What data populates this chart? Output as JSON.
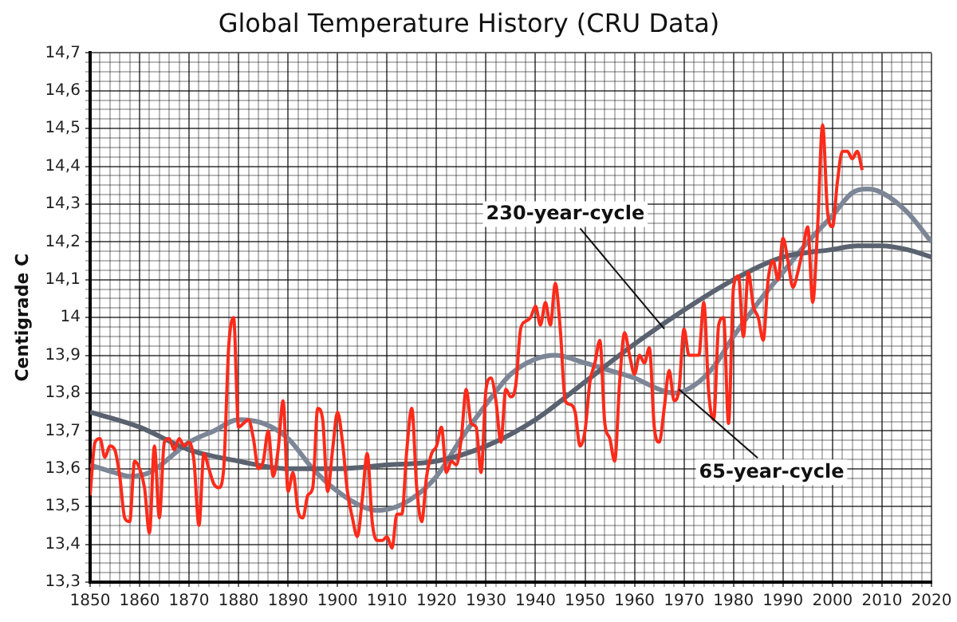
{
  "chart_data": {
    "type": "line",
    "title": "Global Temperature History (CRU Data)",
    "ylabel": "Centigrade C",
    "xlim": [
      1850,
      2020
    ],
    "ylim": [
      13.3,
      14.7
    ],
    "xticks": [
      1850,
      {
        "value": 1852,
        "label": null
      },
      {
        "value": 1854,
        "label": null
      },
      {
        "value": 1856,
        "label": null
      },
      {
        "value": 1858,
        "label": null
      },
      1860,
      {
        "value": 1862,
        "label": null
      },
      {
        "value": 1864,
        "label": null
      },
      {
        "value": 1866,
        "label": null
      },
      {
        "value": 1868,
        "label": null
      },
      1870,
      {
        "value": 1872,
        "label": null
      },
      {
        "value": 1874,
        "label": null
      },
      {
        "value": 1876,
        "label": null
      },
      {
        "value": 1878,
        "label": null
      },
      1880,
      {
        "value": 1882,
        "label": null
      },
      {
        "value": 1884,
        "label": null
      },
      {
        "value": 1886,
        "label": null
      },
      {
        "value": 1888,
        "label": null
      },
      1890,
      {
        "value": 1892,
        "label": null
      },
      {
        "value": 1894,
        "label": null
      },
      {
        "value": 1896,
        "label": null
      },
      {
        "value": 1898,
        "label": null
      },
      1900,
      {
        "value": 1902,
        "label": null
      },
      {
        "value": 1904,
        "label": null
      },
      {
        "value": 1906,
        "label": null
      },
      {
        "value": 1908,
        "label": null
      },
      1910,
      {
        "value": 1912,
        "label": null
      },
      {
        "value": 1914,
        "label": null
      },
      {
        "value": 1916,
        "label": null
      },
      {
        "value": 1918,
        "label": null
      },
      1920,
      {
        "value": 1922,
        "label": null
      },
      {
        "value": 1924,
        "label": null
      },
      {
        "value": 1926,
        "label": null
      },
      {
        "value": 1928,
        "label": null
      },
      1930,
      {
        "value": 1932,
        "label": null
      },
      {
        "value": 1934,
        "label": null
      },
      {
        "value": 1936,
        "label": null
      },
      {
        "value": 1938,
        "label": null
      },
      1940,
      {
        "value": 1942,
        "label": null
      },
      {
        "value": 1944,
        "label": null
      },
      {
        "value": 1946,
        "label": null
      },
      {
        "value": 1948,
        "label": null
      },
      1950,
      {
        "value": 1952,
        "label": null
      },
      {
        "value": 1954,
        "label": null
      },
      {
        "value": 1956,
        "label": null
      },
      {
        "value": 1958,
        "label": null
      },
      1960,
      {
        "value": 1962,
        "label": null
      },
      {
        "value": 1964,
        "label": null
      },
      {
        "value": 1966,
        "label": null
      },
      {
        "value": 1968,
        "label": null
      },
      1970,
      {
        "value": 1972,
        "label": null
      },
      {
        "value": 1974,
        "label": null
      },
      {
        "value": 1976,
        "label": null
      },
      {
        "value": 1978,
        "label": null
      },
      1980,
      {
        "value": 1982,
        "label": null
      },
      {
        "value": 1984,
        "label": null
      },
      {
        "value": 1986,
        "label": null
      },
      {
        "value": 1988,
        "label": null
      },
      1990,
      {
        "value": 1992,
        "label": null
      },
      {
        "value": 1994,
        "label": null
      },
      {
        "value": 1996,
        "label": null
      },
      {
        "value": 1998,
        "label": null
      },
      2000,
      {
        "value": 2002,
        "label": null
      },
      {
        "value": 2004,
        "label": null
      },
      {
        "value": 2006,
        "label": null
      },
      {
        "value": 2008,
        "label": null
      },
      2010,
      {
        "value": 2012,
        "label": null
      },
      {
        "value": 2014,
        "label": null
      },
      {
        "value": 2016,
        "label": null
      },
      {
        "value": 2018,
        "label": null
      },
      2020
    ],
    "yticks": [
      {
        "value": 13.3,
        "label": "13,3"
      },
      {
        "value": 13.325,
        "label": null
      },
      {
        "value": 13.35,
        "label": null
      },
      {
        "value": 13.375,
        "label": null
      },
      {
        "value": 13.4,
        "label": "13,4"
      },
      {
        "value": 13.425,
        "label": null
      },
      {
        "value": 13.45,
        "label": null
      },
      {
        "value": 13.475,
        "label": null
      },
      {
        "value": 13.5,
        "label": "13,5"
      },
      {
        "value": 13.525,
        "label": null
      },
      {
        "value": 13.55,
        "label": null
      },
      {
        "value": 13.575,
        "label": null
      },
      {
        "value": 13.6,
        "label": "13,6"
      },
      {
        "value": 13.625,
        "label": null
      },
      {
        "value": 13.65,
        "label": null
      },
      {
        "value": 13.675,
        "label": null
      },
      {
        "value": 13.7,
        "label": "13,7"
      },
      {
        "value": 13.725,
        "label": null
      },
      {
        "value": 13.75,
        "label": null
      },
      {
        "value": 13.775,
        "label": null
      },
      {
        "value": 13.8,
        "label": "13,8"
      },
      {
        "value": 13.825,
        "label": null
      },
      {
        "value": 13.85,
        "label": null
      },
      {
        "value": 13.875,
        "label": null
      },
      {
        "value": 13.9,
        "label": "13,9"
      },
      {
        "value": 13.925,
        "label": null
      },
      {
        "value": 13.95,
        "label": null
      },
      {
        "value": 13.975,
        "label": null
      },
      14,
      {
        "value": 14.025,
        "label": null
      },
      {
        "value": 14.05,
        "label": null
      },
      {
        "value": 14.075,
        "label": null
      },
      {
        "value": 14.1,
        "label": "14,1"
      },
      {
        "value": 14.125,
        "label": null
      },
      {
        "value": 14.15,
        "label": null
      },
      {
        "value": 14.175,
        "label": null
      },
      {
        "value": 14.2,
        "label": "14,2"
      },
      {
        "value": 14.225,
        "label": null
      },
      {
        "value": 14.25,
        "label": null
      },
      {
        "value": 14.275,
        "label": null
      },
      {
        "value": 14.3,
        "label": "14,3"
      },
      {
        "value": 14.325,
        "label": null
      },
      {
        "value": 14.35,
        "label": null
      },
      {
        "value": 14.375,
        "label": null
      },
      {
        "value": 14.4,
        "label": "14,4"
      },
      {
        "value": 14.425,
        "label": null
      },
      {
        "value": 14.45,
        "label": null
      },
      {
        "value": 14.475,
        "label": null
      },
      {
        "value": 14.5,
        "label": "14,5"
      },
      {
        "value": 14.525,
        "label": null
      },
      {
        "value": 14.55,
        "label": null
      },
      {
        "value": 14.575,
        "label": null
      },
      {
        "value": 14.6,
        "label": "14,6"
      },
      {
        "value": 14.625,
        "label": null
      },
      {
        "value": 14.65,
        "label": null
      },
      {
        "value": 14.675,
        "label": null
      },
      {
        "value": 14.7,
        "label": "14,7"
      }
    ],
    "grid": true,
    "marker": "none",
    "line_style": "solid",
    "series": [
      {
        "color": "#ff2a1a",
        "x": [
          1850,
          1851,
          1852,
          1853,
          1854,
          1855,
          1856,
          1857,
          1858,
          1859,
          1860,
          1861,
          1862,
          1863,
          1864,
          1865,
          1866,
          1867,
          1868,
          1869,
          1870,
          1871,
          1872,
          1873,
          1874,
          1875,
          1876,
          1877,
          1878,
          1879,
          1880,
          1881,
          1882,
          1883,
          1884,
          1885,
          1886,
          1887,
          1888,
          1889,
          1890,
          1891,
          1892,
          1893,
          1894,
          1895,
          1896,
          1897,
          1898,
          1899,
          1900,
          1901,
          1902,
          1903,
          1904,
          1905,
          1906,
          1907,
          1908,
          1909,
          1910,
          1911,
          1912,
          1913,
          1914,
          1915,
          1916,
          1917,
          1918,
          1919,
          1920,
          1921,
          1922,
          1923,
          1924,
          1925,
          1926,
          1927,
          1928,
          1929,
          1930,
          1931,
          1932,
          1933,
          1934,
          1935,
          1936,
          1937,
          1938,
          1939,
          1940,
          1941,
          1942,
          1943,
          1944,
          1945,
          1946,
          1947,
          1948,
          1949,
          1950,
          1951,
          1952,
          1953,
          1954,
          1955,
          1956,
          1957,
          1958,
          1959,
          1960,
          1961,
          1962,
          1963,
          1964,
          1965,
          1966,
          1967,
          1968,
          1969,
          1970,
          1971,
          1972,
          1973,
          1974,
          1975,
          1976,
          1977,
          1978,
          1979,
          1980,
          1981,
          1982,
          1983,
          1984,
          1985,
          1986,
          1987,
          1988,
          1989,
          1990,
          1991,
          1992,
          1993,
          1994,
          1995,
          1996,
          1997,
          1998,
          1999,
          2000,
          2001,
          2002,
          2003,
          2004,
          2005,
          2006
        ],
        "values": [
          13.53,
          13.67,
          13.68,
          13.63,
          13.66,
          13.65,
          13.58,
          13.47,
          13.46,
          13.62,
          13.6,
          13.55,
          13.43,
          13.66,
          13.47,
          13.67,
          13.68,
          13.65,
          13.68,
          13.66,
          13.67,
          13.62,
          13.45,
          13.64,
          13.6,
          13.56,
          13.55,
          13.6,
          13.92,
          14.0,
          13.71,
          13.72,
          13.73,
          13.68,
          13.6,
          13.62,
          13.7,
          13.58,
          13.65,
          13.78,
          13.54,
          13.59,
          13.49,
          13.47,
          13.53,
          13.55,
          13.76,
          13.73,
          13.54,
          13.65,
          13.75,
          13.67,
          13.54,
          13.47,
          13.42,
          13.52,
          13.64,
          13.46,
          13.41,
          13.41,
          13.42,
          13.39,
          13.48,
          13.48,
          13.65,
          13.76,
          13.55,
          13.46,
          13.58,
          13.64,
          13.66,
          13.71,
          13.59,
          13.62,
          13.61,
          13.68,
          13.81,
          13.72,
          13.71,
          13.59,
          13.81,
          13.84,
          13.78,
          13.67,
          13.81,
          13.79,
          13.82,
          13.97,
          13.99,
          14.0,
          14.03,
          13.98,
          14.04,
          13.98,
          14.09,
          13.97,
          13.78,
          13.77,
          13.75,
          13.66,
          13.7,
          13.83,
          13.88,
          13.94,
          13.72,
          13.68,
          13.62,
          13.83,
          13.96,
          13.9,
          13.85,
          13.9,
          13.88,
          13.92,
          13.71,
          13.67,
          13.76,
          13.86,
          13.78,
          13.81,
          13.97,
          13.9,
          13.9,
          13.9,
          14.04,
          13.8,
          13.73,
          13.98,
          14.0,
          13.72,
          14.08,
          14.11,
          13.95,
          14.12,
          14.03,
          14.0,
          13.94,
          14.1,
          14.15,
          14.1,
          14.21,
          14.15,
          14.08,
          14.12,
          14.18,
          14.24,
          14.04,
          14.24,
          14.51,
          14.28,
          14.24,
          14.36,
          14.44,
          14.44,
          14.42,
          14.44,
          14.39
        ]
      },
      {
        "color": "#5a6270",
        "x": [
          1850,
          1860,
          1870,
          1880,
          1890,
          1900,
          1910,
          1920,
          1930,
          1940,
          1950,
          1960,
          1970,
          1980,
          1990,
          2000,
          2005,
          2010,
          2015,
          2020
        ],
        "values": [
          13.75,
          13.71,
          13.65,
          13.62,
          13.6,
          13.6,
          13.61,
          13.62,
          13.66,
          13.73,
          13.83,
          13.93,
          14.02,
          14.1,
          14.16,
          14.18,
          14.19,
          14.19,
          14.18,
          14.16
        ]
      },
      {
        "color": "#7d8696",
        "x": [
          1850,
          1855,
          1858,
          1862,
          1870,
          1875,
          1880,
          1885,
          1890,
          1895,
          1900,
          1905,
          1908,
          1912,
          1916,
          1920,
          1925,
          1930,
          1935,
          1940,
          1944,
          1950,
          1955,
          1960,
          1965,
          1968,
          1972,
          1976,
          1980,
          1985,
          1990,
          1995,
          2000,
          2004,
          2007,
          2010,
          2015,
          2020
        ],
        "values": [
          13.61,
          13.59,
          13.58,
          13.59,
          13.67,
          13.7,
          13.73,
          13.72,
          13.68,
          13.6,
          13.54,
          13.5,
          13.49,
          13.5,
          13.53,
          13.58,
          13.68,
          13.77,
          13.85,
          13.89,
          13.9,
          13.88,
          13.86,
          13.84,
          13.81,
          13.8,
          13.82,
          13.87,
          13.95,
          14.04,
          14.12,
          14.2,
          14.27,
          14.33,
          14.34,
          14.33,
          14.28,
          14.2
        ]
      }
    ],
    "annotations": [
      {
        "text": "230-year-cycle",
        "x": 1966,
        "y": 13.97
      },
      {
        "text": "65-year-cycle",
        "x": 1969,
        "y": 13.81
      }
    ]
  }
}
